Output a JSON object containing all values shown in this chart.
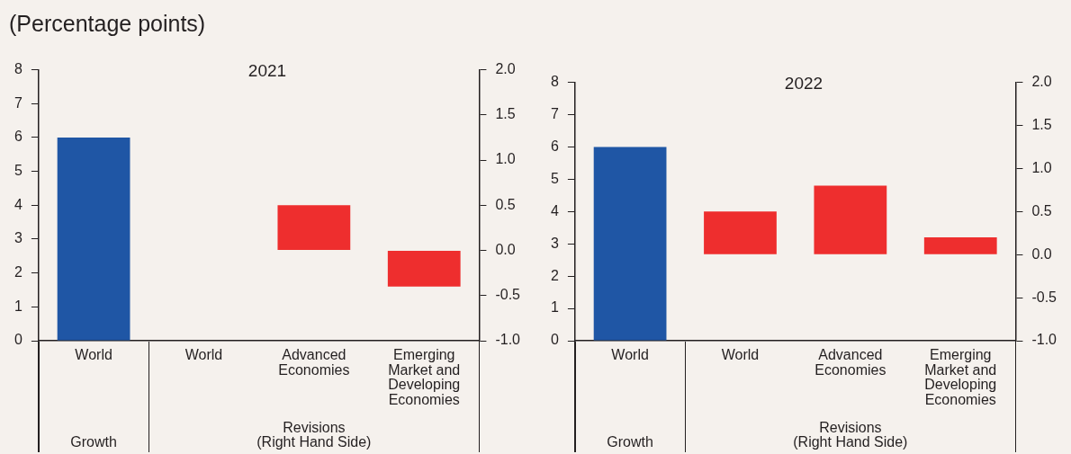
{
  "chart_data": [
    {
      "type": "bar",
      "subtitle": "(Percentage points)",
      "title": "2021",
      "categories": [
        "World",
        "World",
        "Advanced Economies",
        "Emerging Market and Developing Economies"
      ],
      "series": [
        {
          "color": "#1f56a5",
          "values": [
            6.0,
            null,
            null,
            null
          ]
        },
        {
          "color": "#ee2e2e",
          "axis": "y2",
          "values": [
            null,
            0.0,
            0.5,
            -0.4
          ]
        }
      ],
      "ylim": [
        0,
        8
      ],
      "yticks": [
        0,
        1,
        2,
        3,
        4,
        5,
        6,
        7,
        8
      ],
      "y2lim": [
        -1,
        2
      ],
      "y2ticks": [
        {
          "value": -1,
          "label": "-1.0"
        },
        {
          "value": -0.5,
          "label": "-0.5"
        },
        {
          "value": 0,
          "label": "0.0"
        },
        {
          "value": 0.5,
          "label": "0.5"
        },
        {
          "value": 1,
          "label": "1.0"
        },
        {
          "value": 1.5,
          "label": "1.5"
        },
        {
          "value": 2,
          "label": "2.0"
        }
      ],
      "annotations": [
        "Growth",
        "Revisions (Right Hand Side)"
      ],
      "grid": false,
      "legend": false
    },
    {
      "type": "bar",
      "title": "2022",
      "categories": [
        "World",
        "World",
        "Advanced Economies",
        "Emerging Market and Developing Economies"
      ],
      "series": [
        {
          "color": "#1f56a5",
          "values": [
            6.0,
            null,
            null,
            null
          ]
        },
        {
          "color": "#ee2e2e",
          "axis": "y2",
          "values": [
            null,
            0.5,
            0.8,
            0.2
          ]
        }
      ],
      "ylim": [
        0,
        8
      ],
      "yticks": [
        0,
        1,
        2,
        3,
        4,
        5,
        6,
        7,
        8
      ],
      "y2lim": [
        -1,
        2
      ],
      "y2ticks": [
        {
          "value": -1,
          "label": "-1.0"
        },
        {
          "value": -0.5,
          "label": "-0.5"
        },
        {
          "value": 0,
          "label": "0.0"
        },
        {
          "value": 0.5,
          "label": "0.5"
        },
        {
          "value": 1,
          "label": "1.0"
        },
        {
          "value": 1.5,
          "label": "1.5"
        },
        {
          "value": 2,
          "label": "2.0"
        }
      ],
      "annotations": [
        "Growth",
        "Revisions (Right Hand Side)"
      ],
      "grid": false,
      "legend": false
    }
  ]
}
